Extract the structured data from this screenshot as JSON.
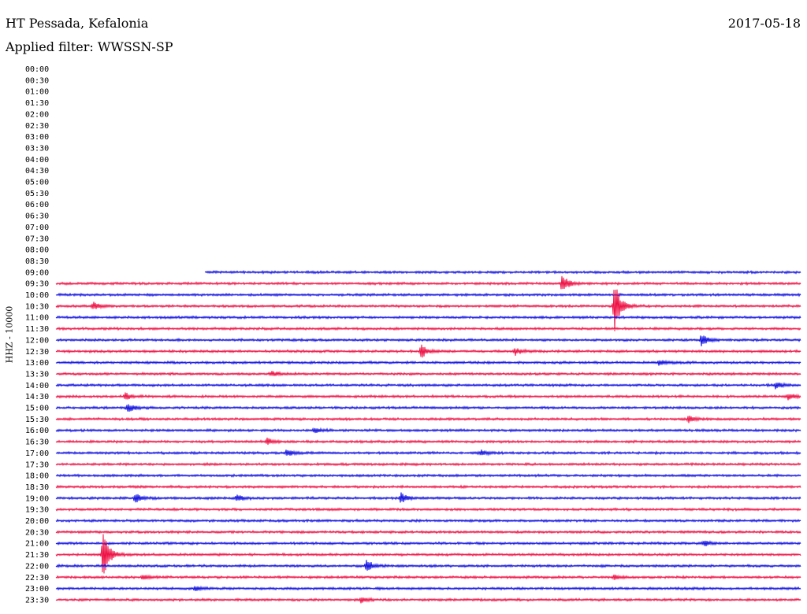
{
  "header": {
    "station": "HT Pessada, Kefalonia",
    "filter": "Applied filter: WWSSN-SP",
    "date": "2017-05-18"
  },
  "chart_data": {
    "type": "line",
    "ylabel": "HHZ - 10000",
    "row_labels": [
      "00:00",
      "00:30",
      "01:00",
      "01:30",
      "02:00",
      "02:30",
      "03:00",
      "03:30",
      "04:00",
      "04:30",
      "05:00",
      "05:30",
      "06:00",
      "06:30",
      "07:00",
      "07:30",
      "08:00",
      "08:30",
      "09:00",
      "09:30",
      "10:00",
      "10:30",
      "11:00",
      "11:30",
      "12:00",
      "12:30",
      "13:00",
      "13:30",
      "14:00",
      "14:30",
      "15:00",
      "15:30",
      "16:00",
      "16:30",
      "17:00",
      "17:30",
      "18:00",
      "18:30",
      "19:00",
      "19:30",
      "20:00",
      "20:30",
      "21:00",
      "21:30",
      "22:00",
      "22:30",
      "23:00",
      "23:30"
    ],
    "x_unit": "minutes within row",
    "x_range": [
      0,
      30
    ],
    "series_colors": [
      "#1010e0",
      "#ee1144"
    ],
    "first_active_row": "09:00",
    "first_data_minute": 6,
    "events": [
      {
        "row": "09:30",
        "minute": 20.4,
        "amplitude": 0.85
      },
      {
        "row": "10:30",
        "minute": 1.5,
        "amplitude": 0.35
      },
      {
        "row": "10:30",
        "minute": 22.5,
        "amplitude": 2.3
      },
      {
        "row": "12:00",
        "minute": 26.0,
        "amplitude": 0.55
      },
      {
        "row": "12:30",
        "minute": 14.7,
        "amplitude": 0.65
      },
      {
        "row": "12:30",
        "minute": 18.5,
        "amplitude": 0.3
      },
      {
        "row": "13:00",
        "minute": 24.3,
        "amplitude": 0.3
      },
      {
        "row": "13:30",
        "minute": 8.7,
        "amplitude": 0.25
      },
      {
        "row": "14:00",
        "minute": 29.0,
        "amplitude": 0.35
      },
      {
        "row": "14:30",
        "minute": 2.8,
        "amplitude": 0.35
      },
      {
        "row": "14:30",
        "minute": 29.5,
        "amplitude": 0.3
      },
      {
        "row": "15:00",
        "minute": 2.9,
        "amplitude": 0.4
      },
      {
        "row": "15:30",
        "minute": 25.5,
        "amplitude": 0.35
      },
      {
        "row": "16:00",
        "minute": 10.4,
        "amplitude": 0.25
      },
      {
        "row": "16:30",
        "minute": 8.5,
        "amplitude": 0.3
      },
      {
        "row": "17:00",
        "minute": 9.3,
        "amplitude": 0.3
      },
      {
        "row": "17:00",
        "minute": 17.1,
        "amplitude": 0.25
      },
      {
        "row": "19:00",
        "minute": 3.2,
        "amplitude": 0.45
      },
      {
        "row": "19:00",
        "minute": 7.3,
        "amplitude": 0.3
      },
      {
        "row": "19:00",
        "minute": 13.9,
        "amplitude": 0.5
      },
      {
        "row": "21:00",
        "minute": 26.1,
        "amplitude": 0.25
      },
      {
        "row": "21:30",
        "minute": 1.9,
        "amplitude": 2.2
      },
      {
        "row": "22:00",
        "minute": 12.5,
        "amplitude": 0.55
      },
      {
        "row": "22:30",
        "minute": 3.5,
        "amplitude": 0.25
      },
      {
        "row": "22:30",
        "minute": 22.5,
        "amplitude": 0.2
      },
      {
        "row": "23:00",
        "minute": 5.6,
        "amplitude": 0.2
      },
      {
        "row": "23:30",
        "minute": 12.3,
        "amplitude": 0.25
      }
    ]
  }
}
